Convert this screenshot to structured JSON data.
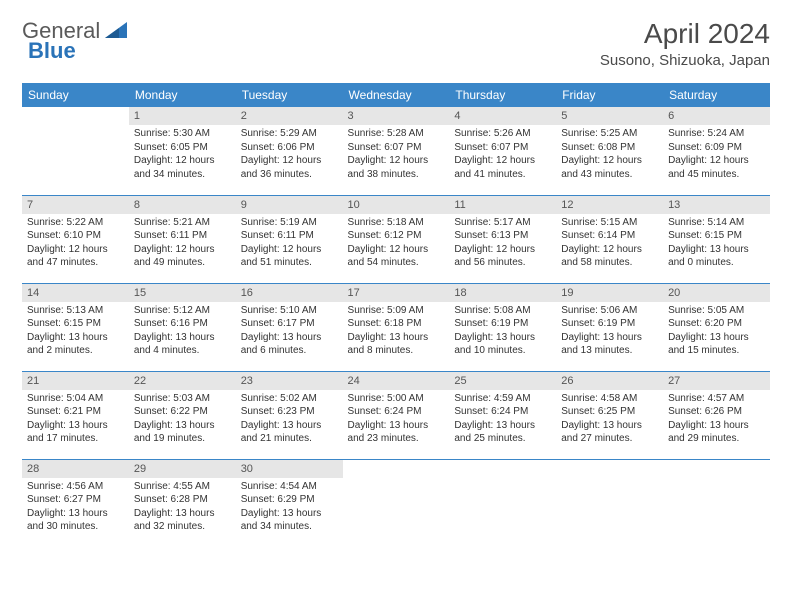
{
  "logo": {
    "text1": "General",
    "text2": "Blue"
  },
  "header": {
    "title": "April 2024",
    "location": "Susono, Shizuoka, Japan"
  },
  "colors": {
    "header_bg": "#3a86c8",
    "header_text": "#ffffff",
    "daynum_bg": "#e6e6e6",
    "row_border": "#3a86c8",
    "logo_blue": "#2a73b8",
    "body_text": "#333333"
  },
  "weekdays": [
    "Sunday",
    "Monday",
    "Tuesday",
    "Wednesday",
    "Thursday",
    "Friday",
    "Saturday"
  ],
  "weeks": [
    [
      null,
      {
        "n": "1",
        "sr": "Sunrise: 5:30 AM",
        "ss": "Sunset: 6:05 PM",
        "dl": "Daylight: 12 hours and 34 minutes."
      },
      {
        "n": "2",
        "sr": "Sunrise: 5:29 AM",
        "ss": "Sunset: 6:06 PM",
        "dl": "Daylight: 12 hours and 36 minutes."
      },
      {
        "n": "3",
        "sr": "Sunrise: 5:28 AM",
        "ss": "Sunset: 6:07 PM",
        "dl": "Daylight: 12 hours and 38 minutes."
      },
      {
        "n": "4",
        "sr": "Sunrise: 5:26 AM",
        "ss": "Sunset: 6:07 PM",
        "dl": "Daylight: 12 hours and 41 minutes."
      },
      {
        "n": "5",
        "sr": "Sunrise: 5:25 AM",
        "ss": "Sunset: 6:08 PM",
        "dl": "Daylight: 12 hours and 43 minutes."
      },
      {
        "n": "6",
        "sr": "Sunrise: 5:24 AM",
        "ss": "Sunset: 6:09 PM",
        "dl": "Daylight: 12 hours and 45 minutes."
      }
    ],
    [
      {
        "n": "7",
        "sr": "Sunrise: 5:22 AM",
        "ss": "Sunset: 6:10 PM",
        "dl": "Daylight: 12 hours and 47 minutes."
      },
      {
        "n": "8",
        "sr": "Sunrise: 5:21 AM",
        "ss": "Sunset: 6:11 PM",
        "dl": "Daylight: 12 hours and 49 minutes."
      },
      {
        "n": "9",
        "sr": "Sunrise: 5:19 AM",
        "ss": "Sunset: 6:11 PM",
        "dl": "Daylight: 12 hours and 51 minutes."
      },
      {
        "n": "10",
        "sr": "Sunrise: 5:18 AM",
        "ss": "Sunset: 6:12 PM",
        "dl": "Daylight: 12 hours and 54 minutes."
      },
      {
        "n": "11",
        "sr": "Sunrise: 5:17 AM",
        "ss": "Sunset: 6:13 PM",
        "dl": "Daylight: 12 hours and 56 minutes."
      },
      {
        "n": "12",
        "sr": "Sunrise: 5:15 AM",
        "ss": "Sunset: 6:14 PM",
        "dl": "Daylight: 12 hours and 58 minutes."
      },
      {
        "n": "13",
        "sr": "Sunrise: 5:14 AM",
        "ss": "Sunset: 6:15 PM",
        "dl": "Daylight: 13 hours and 0 minutes."
      }
    ],
    [
      {
        "n": "14",
        "sr": "Sunrise: 5:13 AM",
        "ss": "Sunset: 6:15 PM",
        "dl": "Daylight: 13 hours and 2 minutes."
      },
      {
        "n": "15",
        "sr": "Sunrise: 5:12 AM",
        "ss": "Sunset: 6:16 PM",
        "dl": "Daylight: 13 hours and 4 minutes."
      },
      {
        "n": "16",
        "sr": "Sunrise: 5:10 AM",
        "ss": "Sunset: 6:17 PM",
        "dl": "Daylight: 13 hours and 6 minutes."
      },
      {
        "n": "17",
        "sr": "Sunrise: 5:09 AM",
        "ss": "Sunset: 6:18 PM",
        "dl": "Daylight: 13 hours and 8 minutes."
      },
      {
        "n": "18",
        "sr": "Sunrise: 5:08 AM",
        "ss": "Sunset: 6:19 PM",
        "dl": "Daylight: 13 hours and 10 minutes."
      },
      {
        "n": "19",
        "sr": "Sunrise: 5:06 AM",
        "ss": "Sunset: 6:19 PM",
        "dl": "Daylight: 13 hours and 13 minutes."
      },
      {
        "n": "20",
        "sr": "Sunrise: 5:05 AM",
        "ss": "Sunset: 6:20 PM",
        "dl": "Daylight: 13 hours and 15 minutes."
      }
    ],
    [
      {
        "n": "21",
        "sr": "Sunrise: 5:04 AM",
        "ss": "Sunset: 6:21 PM",
        "dl": "Daylight: 13 hours and 17 minutes."
      },
      {
        "n": "22",
        "sr": "Sunrise: 5:03 AM",
        "ss": "Sunset: 6:22 PM",
        "dl": "Daylight: 13 hours and 19 minutes."
      },
      {
        "n": "23",
        "sr": "Sunrise: 5:02 AM",
        "ss": "Sunset: 6:23 PM",
        "dl": "Daylight: 13 hours and 21 minutes."
      },
      {
        "n": "24",
        "sr": "Sunrise: 5:00 AM",
        "ss": "Sunset: 6:24 PM",
        "dl": "Daylight: 13 hours and 23 minutes."
      },
      {
        "n": "25",
        "sr": "Sunrise: 4:59 AM",
        "ss": "Sunset: 6:24 PM",
        "dl": "Daylight: 13 hours and 25 minutes."
      },
      {
        "n": "26",
        "sr": "Sunrise: 4:58 AM",
        "ss": "Sunset: 6:25 PM",
        "dl": "Daylight: 13 hours and 27 minutes."
      },
      {
        "n": "27",
        "sr": "Sunrise: 4:57 AM",
        "ss": "Sunset: 6:26 PM",
        "dl": "Daylight: 13 hours and 29 minutes."
      }
    ],
    [
      {
        "n": "28",
        "sr": "Sunrise: 4:56 AM",
        "ss": "Sunset: 6:27 PM",
        "dl": "Daylight: 13 hours and 30 minutes."
      },
      {
        "n": "29",
        "sr": "Sunrise: 4:55 AM",
        "ss": "Sunset: 6:28 PM",
        "dl": "Daylight: 13 hours and 32 minutes."
      },
      {
        "n": "30",
        "sr": "Sunrise: 4:54 AM",
        "ss": "Sunset: 6:29 PM",
        "dl": "Daylight: 13 hours and 34 minutes."
      },
      null,
      null,
      null,
      null
    ]
  ]
}
